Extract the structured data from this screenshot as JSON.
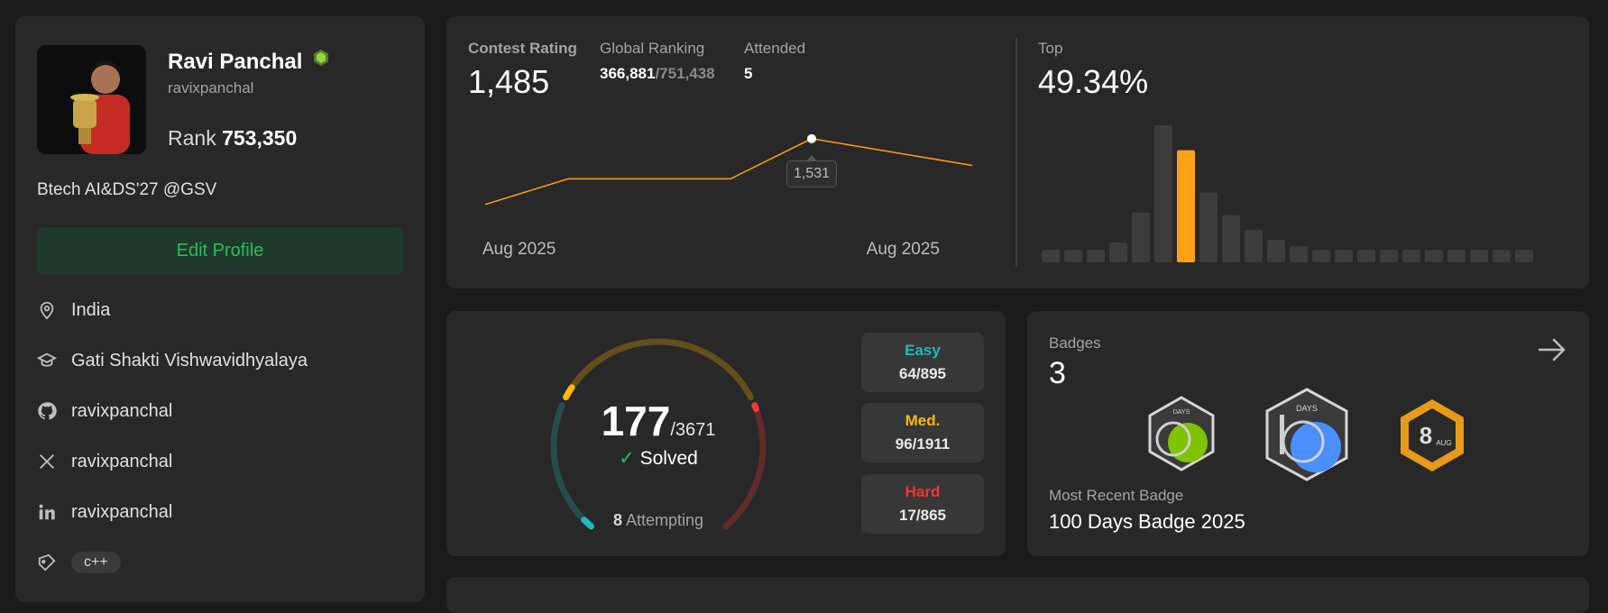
{
  "profile": {
    "name": "Ravi Panchal",
    "username": "ravixpanchal",
    "rank_label": "Rank",
    "rank_value": "753,350",
    "bio": "Btech AI&DS'27 @GSV",
    "edit_button": "Edit Profile",
    "location": "India",
    "school": "Gati Shakti Vishwavidhyalaya",
    "github": "ravixpanchal",
    "twitter": "ravixpanchal",
    "linkedin": "ravixpanchal",
    "skill_tag": "c++"
  },
  "contest": {
    "rating_label": "Contest Rating",
    "rating_value": "1,485",
    "global_label": "Global Ranking",
    "global_rank": "366,881",
    "global_total": "/751,438",
    "attended_label": "Attended",
    "attended_value": "5",
    "top_label": "Top",
    "top_value": "49.34%",
    "tooltip_value": "1,531",
    "x_start_label": "Aug 2025",
    "x_end_label": "Aug 2025",
    "accent_color": "#ffa116"
  },
  "chart_data": [
    {
      "type": "line",
      "values": [
        1418,
        1462,
        1462,
        1531,
        1485
      ],
      "highlight_index": 3,
      "xlabel": "",
      "ylabel": ""
    },
    {
      "type": "bar",
      "values": [
        1,
        1,
        1,
        1.6,
        4,
        11,
        9,
        5.6,
        3.8,
        2.6,
        1.8,
        1.3,
        1,
        1,
        1,
        1,
        1,
        1,
        1,
        1,
        1,
        1
      ],
      "highlight_index": 6,
      "xlabel": "",
      "ylabel": ""
    }
  ],
  "solved": {
    "count": "177",
    "total": "/3671",
    "solved_label": "Solved",
    "attempting_count": "8",
    "attempting_label": "Attempting",
    "easy_label": "Easy",
    "easy_value": "64/895",
    "easy_color": "#1cbaba",
    "med_label": "Med.",
    "med_value": "96/1911",
    "med_color": "#ffb800",
    "hard_label": "Hard",
    "hard_value": "17/865",
    "hard_color": "#f63737",
    "easy_fraction": 0.0715,
    "med_fraction": 0.0502,
    "hard_fraction": 0.0197
  },
  "badges": {
    "label": "Badges",
    "count": "3",
    "badge1_text": "DAYS",
    "badge2_text": "DAYS",
    "badge3_text": "8",
    "badge3_sub": "AUG",
    "recent_label": "Most Recent Badge",
    "recent_value": "100 Days Badge 2025",
    "arrow_icon": "arrow-right-icon"
  }
}
